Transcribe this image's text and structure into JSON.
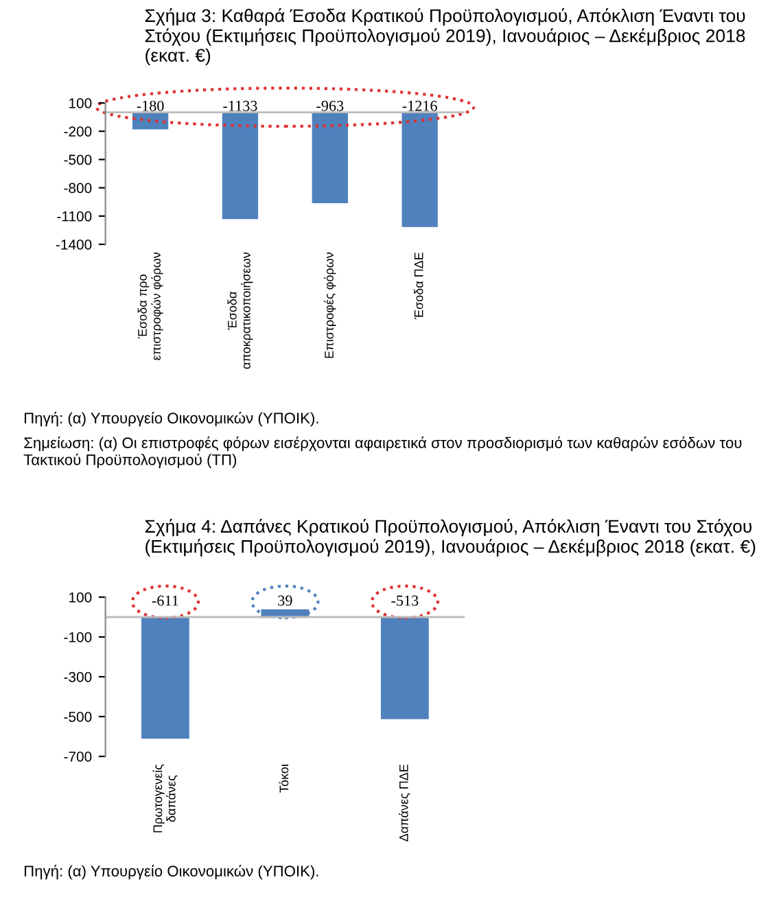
{
  "chart_data": [
    {
      "type": "bar",
      "title": "Σχήμα 3: Καθαρά Έσοδα Κρατικού Προϋπολογισμού, Απόκλιση Έναντι του Στόχου (Εκτιμήσεις Προϋπολογισμού 2019), Ιανουάριος – Δεκέμβριος 2018 (εκατ. €)",
      "categories": [
        "Έσοδα προ επιστροφών φόρων",
        "Έσοδα αποκρατικοποιήσεων",
        "Επιστροφές φόρων",
        "Έσοδα ΠΔΕ"
      ],
      "values": [
        -180,
        -1133,
        -963,
        -1216
      ],
      "color": "#4f81bd",
      "ylim": [
        -1400,
        100
      ],
      "yticks": [
        100,
        -200,
        -500,
        -800,
        -1100,
        -1400
      ],
      "data_labels": true,
      "grid": false,
      "legend": false,
      "annotations": [
        "Πηγή: (α) Υπουργείο Οικονομικών (ΥΠΟΙΚ).",
        "Σημείωση: (α) Οι επιστροφές φόρων εισέρχονται αφαιρετικά στον προσδιορισμό των καθαρών εσόδων του Τακτικού Προϋπολογισμού (ΤΠ)"
      ]
    },
    {
      "type": "bar",
      "title": "Σχήμα 4: Δαπάνες Κρατικού Προϋπολογισμού, Απόκλιση Έναντι του Στόχου (Εκτιμήσεις Προϋπολογισμού 2019), Ιανουάριος – Δεκέμβριος 2018 (εκατ. €)",
      "categories": [
        "Πρωτογενείς δαπάνες",
        "Τόκοι",
        "Δαπάνες ΠΔΕ"
      ],
      "values": [
        -611,
        39,
        -513
      ],
      "color": "#4f81bd",
      "ylim": [
        -700,
        100
      ],
      "yticks": [
        100,
        -100,
        -300,
        -500,
        -700
      ],
      "data_labels": true,
      "grid": false,
      "legend": false,
      "annotations": [
        "Πηγή: (α) Υπουργείο Οικονομικών (ΥΠΟΙΚ)."
      ]
    }
  ]
}
